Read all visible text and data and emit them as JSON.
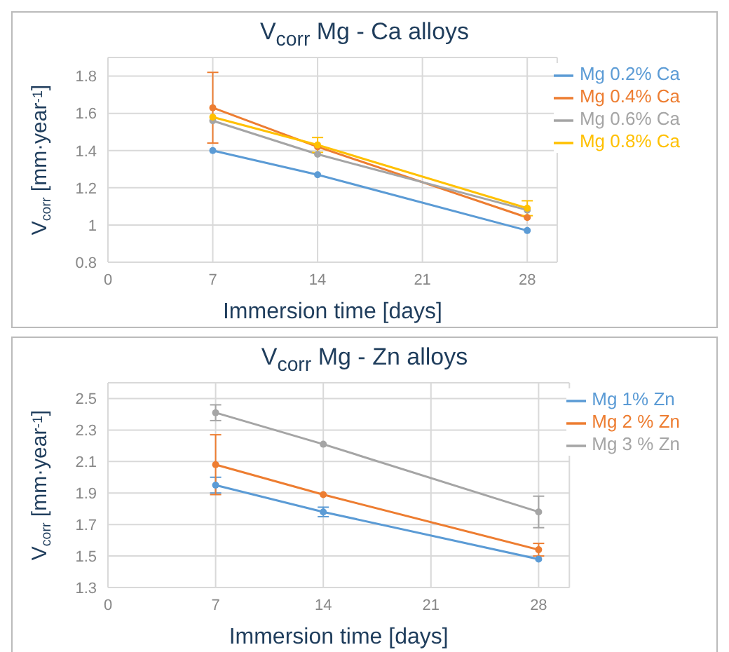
{
  "chart_data": [
    {
      "type": "line",
      "title": "V$_{corr}$ Mg - Ca alloys",
      "xlabel": "Immersion time [days]",
      "ylabel": "V$_{corr}$ [mm·year$^{-1}$]",
      "x": [
        7,
        14,
        28
      ],
      "xlim": [
        0,
        30
      ],
      "xticks": [
        0,
        7,
        14,
        21,
        28
      ],
      "ylim": [
        0.8,
        1.9
      ],
      "yticks": [
        0.8,
        1,
        1.2,
        1.4,
        1.6,
        1.8
      ],
      "grid": true,
      "legend": "top right",
      "marker": "circle",
      "series": [
        {
          "name": "Mg 0.2% Ca",
          "color": "#5b9bd5",
          "values": [
            1.4,
            1.27,
            0.97
          ]
        },
        {
          "name": "Mg 0.4% Ca",
          "color": "#ed7d31",
          "values": [
            1.63,
            1.42,
            1.04
          ],
          "errors": [
            0.19,
            null,
            null
          ]
        },
        {
          "name": "Mg 0.6% Ca",
          "color": "#a5a5a5",
          "values": [
            1.56,
            1.38,
            1.08
          ]
        },
        {
          "name": "Mg 0.8% Ca",
          "color": "#ffc000",
          "values": [
            1.58,
            1.43,
            1.09
          ],
          "errors": [
            null,
            0.04,
            0.04
          ]
        }
      ]
    },
    {
      "type": "line",
      "title": "V$_{corr}$ Mg - Zn alloys",
      "xlabel": "Immersion time [days]",
      "ylabel": "V$_{corr}$ [mm·year$^{-1}$]",
      "x": [
        7,
        14,
        28
      ],
      "xlim": [
        0,
        30
      ],
      "xticks": [
        0,
        7,
        14,
        21,
        28
      ],
      "ylim": [
        1.3,
        2.6
      ],
      "yticks": [
        1.3,
        1.5,
        1.7,
        1.9,
        2.1,
        2.3,
        2.5
      ],
      "grid": true,
      "legend": "top right",
      "marker": "circle",
      "series": [
        {
          "name": "Mg 1% Zn",
          "color": "#5b9bd5",
          "values": [
            1.95,
            1.78,
            1.48
          ],
          "errors": [
            0.05,
            0.03,
            null
          ]
        },
        {
          "name": "Mg 2 % Zn",
          "color": "#ed7d31",
          "values": [
            2.08,
            1.89,
            1.54
          ],
          "errors": [
            0.19,
            null,
            0.04
          ]
        },
        {
          "name": "Mg 3 % Zn",
          "color": "#a5a5a5",
          "values": [
            2.41,
            2.21,
            1.78
          ],
          "errors": [
            0.05,
            null,
            0.1
          ]
        }
      ]
    }
  ]
}
